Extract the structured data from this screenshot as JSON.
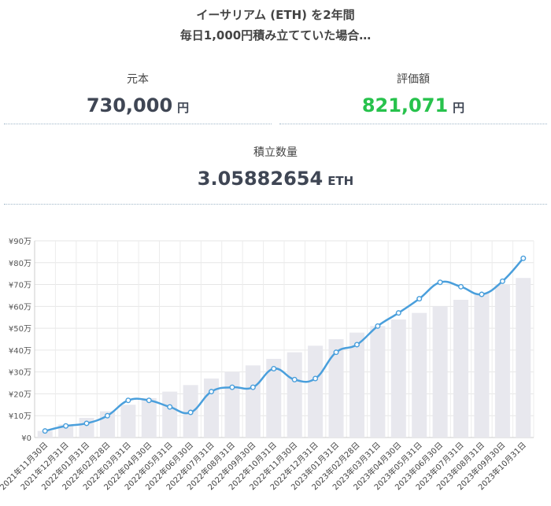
{
  "header": {
    "title": "イーサリアム (ETH) を2年間",
    "subtitle": "毎日1,000円積み立てていた場合…"
  },
  "stats": {
    "principal": {
      "label": "元本",
      "value": "730,000",
      "unit": "円"
    },
    "valuation": {
      "label": "評価額",
      "value": "821,071",
      "unit": "円"
    },
    "quantity": {
      "label": "積立数量",
      "value": "3.05882654",
      "unit": "ETH"
    }
  },
  "colors": {
    "bar": "#e8e8ee",
    "line": "#4a9fdc",
    "green": "#27c24c"
  },
  "chart_data": {
    "type": "bar",
    "categories": [
      "2021年11月30日",
      "2021年12月31日",
      "2022年01月31日",
      "2022年02月28日",
      "2022年03月31日",
      "2022年04月30日",
      "2022年05月31日",
      "2022年06月30日",
      "2022年07月31日",
      "2022年08月31日",
      "2022年09月30日",
      "2022年10月31日",
      "2022年11月30日",
      "2022年12月31日",
      "2023年01月31日",
      "2023年02月28日",
      "2023年03月31日",
      "2023年04月30日",
      "2023年05月31日",
      "2023年06月30日",
      "2023年07月31日",
      "2023年08月31日",
      "2023年09月30日",
      "2023年10月31日"
    ],
    "series": [
      {
        "type": "bar",
        "values": [
          3,
          6,
          9,
          12,
          15,
          18,
          21,
          24,
          27,
          30,
          33,
          36,
          39,
          42,
          45,
          48,
          51,
          54,
          57,
          60,
          63,
          66,
          70,
          73
        ]
      },
      {
        "type": "line",
        "values": [
          3,
          5.3,
          6.5,
          10,
          17,
          17,
          14,
          11.5,
          21,
          23,
          23,
          31.5,
          26.5,
          27,
          39,
          42.5,
          51,
          57,
          63.5,
          71,
          69,
          65.5,
          71.5,
          82
        ]
      }
    ],
    "yticks": [
      "¥0",
      "¥10万",
      "¥20万",
      "¥30万",
      "¥40万",
      "¥50万",
      "¥60万",
      "¥70万",
      "¥80万",
      "¥90万"
    ],
    "ylim": [
      0,
      90
    ],
    "grid": true
  }
}
